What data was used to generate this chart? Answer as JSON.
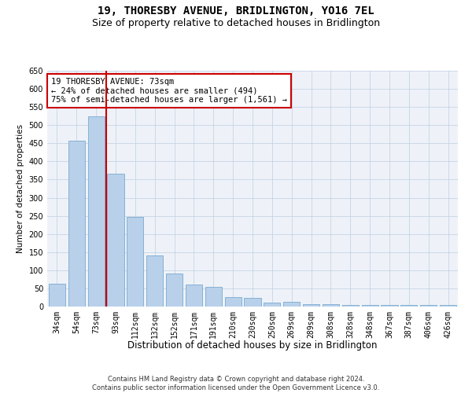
{
  "title": "19, THORESBY AVENUE, BRIDLINGTON, YO16 7EL",
  "subtitle": "Size of property relative to detached houses in Bridlington",
  "xlabel": "Distribution of detached houses by size in Bridlington",
  "ylabel": "Number of detached properties",
  "categories": [
    "34sqm",
    "54sqm",
    "73sqm",
    "93sqm",
    "112sqm",
    "132sqm",
    "152sqm",
    "171sqm",
    "191sqm",
    "210sqm",
    "230sqm",
    "250sqm",
    "269sqm",
    "289sqm",
    "308sqm",
    "328sqm",
    "348sqm",
    "367sqm",
    "387sqm",
    "406sqm",
    "426sqm"
  ],
  "values": [
    62,
    457,
    524,
    367,
    248,
    140,
    92,
    60,
    55,
    25,
    23,
    10,
    12,
    7,
    6,
    5,
    5,
    4,
    4,
    5,
    4
  ],
  "bar_color": "#b8d0ea",
  "bar_edge_color": "#7aaad0",
  "vline_color": "#cc0000",
  "annotation_text": "19 THORESBY AVENUE: 73sqm\n← 24% of detached houses are smaller (494)\n75% of semi-detached houses are larger (1,561) →",
  "annotation_box_color": "#ffffff",
  "annotation_box_edge_color": "#cc0000",
  "ylim": [
    0,
    650
  ],
  "yticks": [
    0,
    50,
    100,
    150,
    200,
    250,
    300,
    350,
    400,
    450,
    500,
    550,
    600,
    650
  ],
  "background_color": "#eef2f8",
  "footer_text": "Contains HM Land Registry data © Crown copyright and database right 2024.\nContains public sector information licensed under the Open Government Licence v3.0.",
  "title_fontsize": 10,
  "subtitle_fontsize": 9,
  "xlabel_fontsize": 8.5,
  "ylabel_fontsize": 7.5,
  "tick_fontsize": 7,
  "annotation_fontsize": 7.5,
  "footer_fontsize": 6
}
